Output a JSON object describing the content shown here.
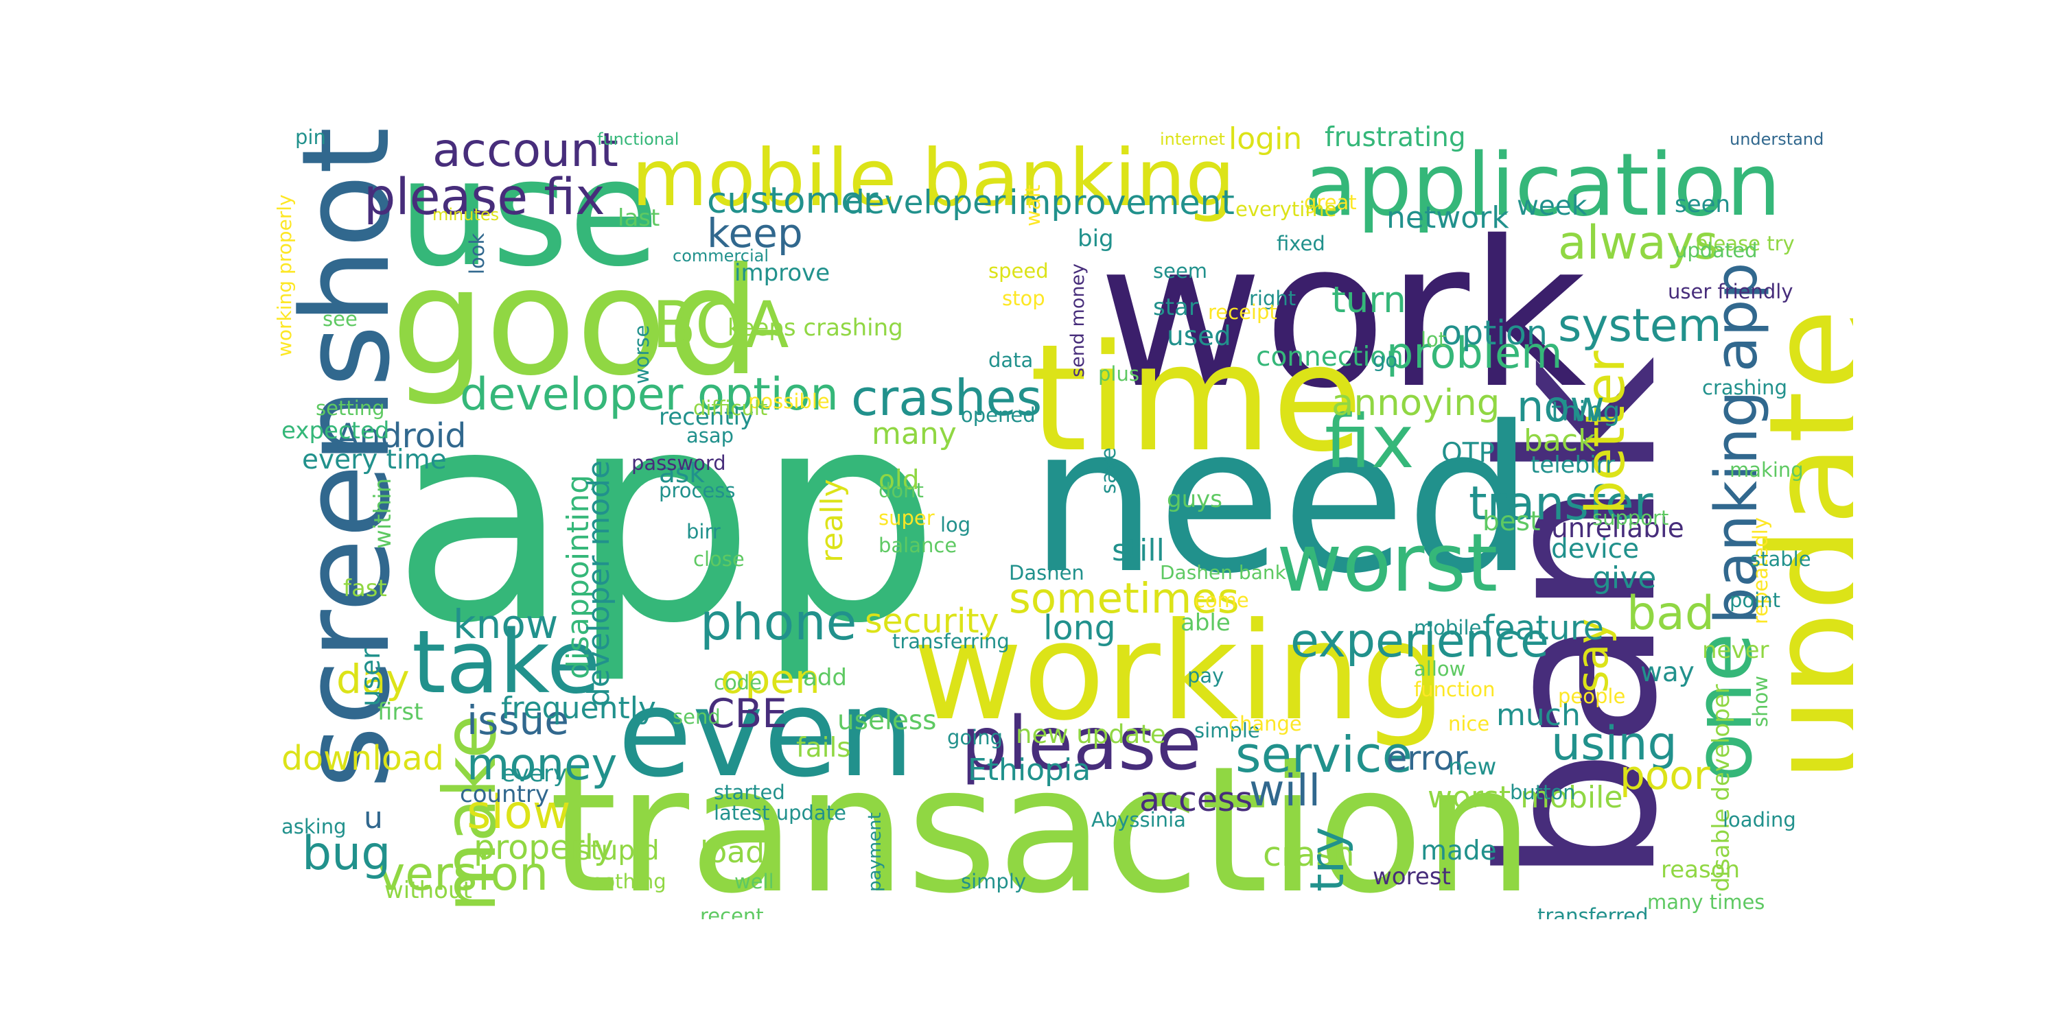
{
  "palette": {
    "viridis_dark": "#3b1f6b",
    "viridis_purple": "#472d7b",
    "viridis_blue": "#31688e",
    "viridis_teal": "#21918c",
    "viridis_green": "#35b779",
    "viridis_lightgreen": "#5ec962",
    "viridis_lime": "#90d743",
    "viridis_yellow": "#dce318",
    "viridis_brightyellow": "#fde725"
  },
  "wordcloud": {
    "words": [
      {
        "id": "app",
        "text": "app"
      },
      {
        "id": "bank",
        "text": "bank"
      },
      {
        "id": "work",
        "text": "work"
      },
      {
        "id": "transaction",
        "text": "transaction"
      },
      {
        "id": "need",
        "text": "need"
      },
      {
        "id": "update",
        "text": "update"
      },
      {
        "id": "screenshot",
        "text": "screenshot"
      },
      {
        "id": "working",
        "text": "working"
      },
      {
        "id": "good",
        "text": "good"
      },
      {
        "id": "use",
        "text": "use"
      },
      {
        "id": "time",
        "text": "time"
      },
      {
        "id": "even",
        "text": "even"
      },
      {
        "id": "mobile_banking",
        "text": "mobile banking"
      },
      {
        "id": "application",
        "text": "application"
      },
      {
        "id": "worst",
        "text": "worst"
      },
      {
        "id": "take",
        "text": "take"
      },
      {
        "id": "please",
        "text": "please"
      },
      {
        "id": "banking_app",
        "text": "banking app"
      },
      {
        "id": "fix",
        "text": "fix"
      },
      {
        "id": "make",
        "text": "make"
      },
      {
        "id": "one",
        "text": "one"
      },
      {
        "id": "boa",
        "text": "BOA"
      },
      {
        "id": "developer_option",
        "text": "developer option"
      },
      {
        "id": "crashes",
        "text": "crashes"
      },
      {
        "id": "transfer",
        "text": "transfer"
      },
      {
        "id": "please_fix",
        "text": "please fix"
      },
      {
        "id": "account",
        "text": "account"
      },
      {
        "id": "service",
        "text": "service"
      },
      {
        "id": "experience",
        "text": "experience"
      },
      {
        "id": "problem",
        "text": "problem"
      },
      {
        "id": "always",
        "text": "always"
      },
      {
        "id": "system",
        "text": "system"
      },
      {
        "id": "sometimes",
        "text": "sometimes"
      },
      {
        "id": "phone",
        "text": "phone"
      },
      {
        "id": "keep",
        "text": "keep"
      },
      {
        "id": "customer",
        "text": "customer"
      },
      {
        "id": "better",
        "text": "better"
      },
      {
        "id": "now",
        "text": "now"
      },
      {
        "id": "money",
        "text": "money"
      },
      {
        "id": "issue",
        "text": "issue"
      },
      {
        "id": "know",
        "text": "know"
      },
      {
        "id": "slow",
        "text": "slow"
      },
      {
        "id": "bad",
        "text": "bad"
      },
      {
        "id": "using",
        "text": "using"
      },
      {
        "id": "version",
        "text": "version"
      },
      {
        "id": "bug",
        "text": "bug"
      },
      {
        "id": "open",
        "text": "open"
      },
      {
        "id": "will",
        "text": "will"
      },
      {
        "id": "say",
        "text": "say"
      },
      {
        "id": "poor",
        "text": "poor"
      },
      {
        "id": "cbe",
        "text": "CBE"
      },
      {
        "id": "day",
        "text": "day"
      },
      {
        "id": "option",
        "text": "option"
      },
      {
        "id": "annoying",
        "text": "annoying"
      },
      {
        "id": "turn",
        "text": "turn"
      },
      {
        "id": "improvement",
        "text": "improvement"
      },
      {
        "id": "developer",
        "text": "developer"
      },
      {
        "id": "network",
        "text": "network"
      },
      {
        "id": "security",
        "text": "security"
      },
      {
        "id": "feature",
        "text": "feature"
      },
      {
        "id": "long",
        "text": "long"
      },
      {
        "id": "error",
        "text": "error"
      },
      {
        "id": "crash",
        "text": "crash"
      },
      {
        "id": "access",
        "text": "access"
      },
      {
        "id": "android",
        "text": "Android"
      },
      {
        "id": "download",
        "text": "download"
      },
      {
        "id": "properly",
        "text": "properly"
      },
      {
        "id": "frequently",
        "text": "frequently"
      },
      {
        "id": "disappointing",
        "text": "disappointing"
      },
      {
        "id": "developer_mode",
        "text": "developer mode"
      },
      {
        "id": "really",
        "text": "really"
      },
      {
        "id": "give",
        "text": "give"
      },
      {
        "id": "worst_mobile",
        "text": "worst mobile"
      },
      {
        "id": "login",
        "text": "login"
      },
      {
        "id": "frustrating",
        "text": "frustrating"
      },
      {
        "id": "week",
        "text": "week"
      },
      {
        "id": "many",
        "text": "many"
      },
      {
        "id": "much",
        "text": "much"
      },
      {
        "id": "still",
        "text": "still"
      },
      {
        "id": "new_update",
        "text": "new update"
      },
      {
        "id": "ethiopia",
        "text": "Ethiopia"
      },
      {
        "id": "back",
        "text": "back"
      },
      {
        "id": "thing",
        "text": "thing"
      },
      {
        "id": "useless",
        "text": "useless"
      },
      {
        "id": "try",
        "text": "try"
      },
      {
        "id": "load",
        "text": "load"
      },
      {
        "id": "made",
        "text": "made"
      },
      {
        "id": "stupid",
        "text": "stupid"
      },
      {
        "id": "u",
        "text": "u"
      },
      {
        "id": "connection",
        "text": "connection"
      },
      {
        "id": "used",
        "text": "used"
      },
      {
        "id": "every_time",
        "text": "every time"
      },
      {
        "id": "fails",
        "text": "fails"
      },
      {
        "id": "worest",
        "text": "worest"
      },
      {
        "id": "way",
        "text": "way"
      },
      {
        "id": "device",
        "text": "device"
      },
      {
        "id": "unreliable",
        "text": "unreliable"
      },
      {
        "id": "otp",
        "text": "OTP"
      },
      {
        "id": "best",
        "text": "best"
      },
      {
        "id": "ask",
        "text": "ask"
      },
      {
        "id": "old",
        "text": "old"
      },
      {
        "id": "improve",
        "text": "improve"
      },
      {
        "id": "last",
        "text": "last"
      },
      {
        "id": "keeps_crashing",
        "text": "keeps crashing"
      },
      {
        "id": "user",
        "text": "user"
      },
      {
        "id": "pin",
        "text": "pin"
      },
      {
        "id": "big",
        "text": "big"
      },
      {
        "id": "star",
        "text": "star"
      },
      {
        "id": "telebirr",
        "text": "telebirr"
      },
      {
        "id": "guys",
        "text": "guys"
      },
      {
        "id": "country",
        "text": "country"
      },
      {
        "id": "every",
        "text": "every"
      },
      {
        "id": "add",
        "text": "add"
      },
      {
        "id": "reason",
        "text": "reason"
      },
      {
        "id": "send_money",
        "text": "send money"
      },
      {
        "id": "disable_developer",
        "text": "disable developer"
      },
      {
        "id": "seen",
        "text": "seen"
      },
      {
        "id": "please_try",
        "text": "please try"
      },
      {
        "id": "user_friendly",
        "text": "user friendly"
      },
      {
        "id": "recently",
        "text": "recently"
      },
      {
        "id": "without",
        "text": "without"
      },
      {
        "id": "fast",
        "text": "fast"
      },
      {
        "id": "within",
        "text": "within"
      },
      {
        "id": "first",
        "text": "first"
      },
      {
        "id": "expected",
        "text": "expected"
      },
      {
        "id": "able",
        "text": "able"
      },
      {
        "id": "new",
        "text": "new"
      },
      {
        "id": "never",
        "text": "never"
      },
      {
        "id": "process",
        "text": "process"
      },
      {
        "id": "password",
        "text": "password"
      },
      {
        "id": "functional",
        "text": "functional"
      },
      {
        "id": "internet",
        "text": "internet"
      },
      {
        "id": "understand",
        "text": "understand"
      },
      {
        "id": "minutes",
        "text": "minutes"
      },
      {
        "id": "look",
        "text": "look"
      },
      {
        "id": "commercial",
        "text": "commercial"
      },
      {
        "id": "speed",
        "text": "speed"
      },
      {
        "id": "seem",
        "text": "seem"
      },
      {
        "id": "fixed",
        "text": "fixed"
      },
      {
        "id": "great",
        "text": "great"
      },
      {
        "id": "everytime",
        "text": "everytime"
      },
      {
        "id": "wait",
        "text": "wait"
      },
      {
        "id": "updated",
        "text": "updated"
      },
      {
        "id": "right",
        "text": "right"
      },
      {
        "id": "receipt",
        "text": "receipt"
      },
      {
        "id": "stop",
        "text": "stop"
      },
      {
        "id": "worse",
        "text": "worse"
      },
      {
        "id": "see",
        "text": "see"
      },
      {
        "id": "working_properly",
        "text": "working properly"
      },
      {
        "id": "setting",
        "text": "setting"
      },
      {
        "id": "possible",
        "text": "possible"
      },
      {
        "id": "difficult",
        "text": "difficult"
      },
      {
        "id": "asap",
        "text": "asap"
      },
      {
        "id": "opened",
        "text": "opened"
      },
      {
        "id": "data",
        "text": "data"
      },
      {
        "id": "plus",
        "text": "plus"
      },
      {
        "id": "go",
        "text": "go"
      },
      {
        "id": "lot",
        "text": "lot"
      },
      {
        "id": "crashing",
        "text": "crashing"
      },
      {
        "id": "making",
        "text": "making"
      },
      {
        "id": "save",
        "text": "save"
      },
      {
        "id": "dont",
        "text": "dont"
      },
      {
        "id": "super",
        "text": "super"
      },
      {
        "id": "balance",
        "text": "balance"
      },
      {
        "id": "log",
        "text": "log"
      },
      {
        "id": "support",
        "text": "support"
      },
      {
        "id": "repeatedly",
        "text": "repeatedly"
      },
      {
        "id": "stable",
        "text": "stable"
      },
      {
        "id": "point",
        "text": "point"
      },
      {
        "id": "dashen",
        "text": "Dashen"
      },
      {
        "id": "dashen_bank",
        "text": "Dashen bank"
      },
      {
        "id": "come",
        "text": "come"
      },
      {
        "id": "mobile",
        "text": "mobile"
      },
      {
        "id": "allow",
        "text": "allow"
      },
      {
        "id": "transferring",
        "text": "transferring"
      },
      {
        "id": "birr",
        "text": "birr"
      },
      {
        "id": "close",
        "text": "close"
      },
      {
        "id": "code",
        "text": "code"
      },
      {
        "id": "send",
        "text": "send"
      },
      {
        "id": "pay",
        "text": "pay"
      },
      {
        "id": "function",
        "text": "function"
      },
      {
        "id": "people",
        "text": "people"
      },
      {
        "id": "show",
        "text": "show"
      },
      {
        "id": "going",
        "text": "going"
      },
      {
        "id": "simple",
        "text": "simple"
      },
      {
        "id": "change",
        "text": "change"
      },
      {
        "id": "nice",
        "text": "nice"
      },
      {
        "id": "button",
        "text": "button"
      },
      {
        "id": "started",
        "text": "started"
      },
      {
        "id": "latest_update",
        "text": "latest update"
      },
      {
        "id": "payment",
        "text": "payment"
      },
      {
        "id": "abyssinia",
        "text": "Abyssinia"
      },
      {
        "id": "loading",
        "text": "loading"
      },
      {
        "id": "nothing",
        "text": "nothing"
      },
      {
        "id": "well",
        "text": "well"
      },
      {
        "id": "simply",
        "text": "simply"
      },
      {
        "id": "recent",
        "text": "recent"
      },
      {
        "id": "transferred",
        "text": "transferred"
      },
      {
        "id": "many_times",
        "text": "many times"
      },
      {
        "id": "asking",
        "text": "asking"
      }
    ]
  }
}
